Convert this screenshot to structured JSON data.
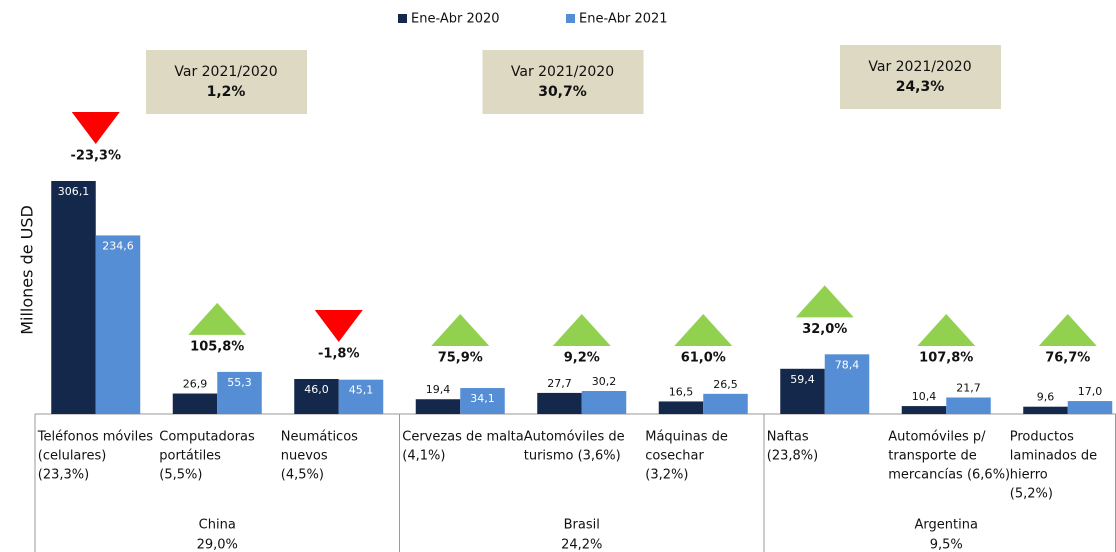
{
  "chart_data": {
    "type": "bar",
    "y_label": "Millones de USD",
    "series": [
      {
        "name": "Ene-Abr 2020",
        "color": "#14284b",
        "values": [
          306.1,
          26.9,
          46.0,
          19.4,
          27.7,
          16.5,
          59.4,
          10.4,
          9.6
        ],
        "value_labels": [
          "306,1",
          "26,9",
          "46,0",
          "19,4",
          "27,7",
          "16,5",
          "59,4",
          "10,4",
          "9,6"
        ]
      },
      {
        "name": "Ene-Abr 2021",
        "color": "#558ed5",
        "values": [
          234.6,
          55.3,
          45.1,
          34.1,
          30.2,
          26.5,
          78.4,
          21.7,
          17.0
        ],
        "value_labels": [
          "234,6",
          "55,3",
          "45,1",
          "34,1",
          "30,2",
          "26,5",
          "78,4",
          "21,7",
          "17,0"
        ]
      }
    ],
    "categories": [
      [
        "Teléfonos móviles",
        "(celulares)",
        "(23,3%)"
      ],
      [
        "Computadoras",
        "portátiles",
        "(5,5%)"
      ],
      [
        "Neumáticos",
        "nuevos",
        "(4,5%)"
      ],
      [
        "Cervezas de malta",
        "(4,1%)"
      ],
      [
        "Automóviles de",
        "turismo (3,6%)"
      ],
      [
        "Máquinas de",
        "cosechar",
        "(3,2%)"
      ],
      [
        "Naftas",
        "(23,8%)"
      ],
      [
        "Automóviles p/",
        "transporte de",
        "mercancías (6,6%)"
      ],
      [
        "Productos",
        "laminados de",
        "hierro",
        "(5,2%)"
      ]
    ],
    "changes": [
      -23.3,
      105.8,
      -1.8,
      75.9,
      9.2,
      61.0,
      32.0,
      107.8,
      76.7
    ],
    "change_labels": [
      "-23,3%",
      "105,8%",
      "-1,8%",
      "75,9%",
      "9,2%",
      "61,0%",
      "32,0%",
      "107,8%",
      "76,7%"
    ],
    "up_color": "#92d050",
    "down_color": "#ff0000",
    "groups": [
      {
        "name": "China",
        "share": 29.0,
        "share_label": "29,0%",
        "var_title": "Var 2021/2020",
        "var": 1.2,
        "var_label": "1,2%"
      },
      {
        "name": "Brasil",
        "share": 24.2,
        "share_label": "24,2%",
        "var_title": "Var 2021/2020",
        "var": 30.7,
        "var_label": "30,7%"
      },
      {
        "name": "Argentina",
        "share": 9.5,
        "share_label": "9,5%",
        "var_title": "Var 2021/2020",
        "var": 24.3,
        "var_label": "24,3%"
      }
    ],
    "ylim": [
      0,
      306.1
    ]
  }
}
